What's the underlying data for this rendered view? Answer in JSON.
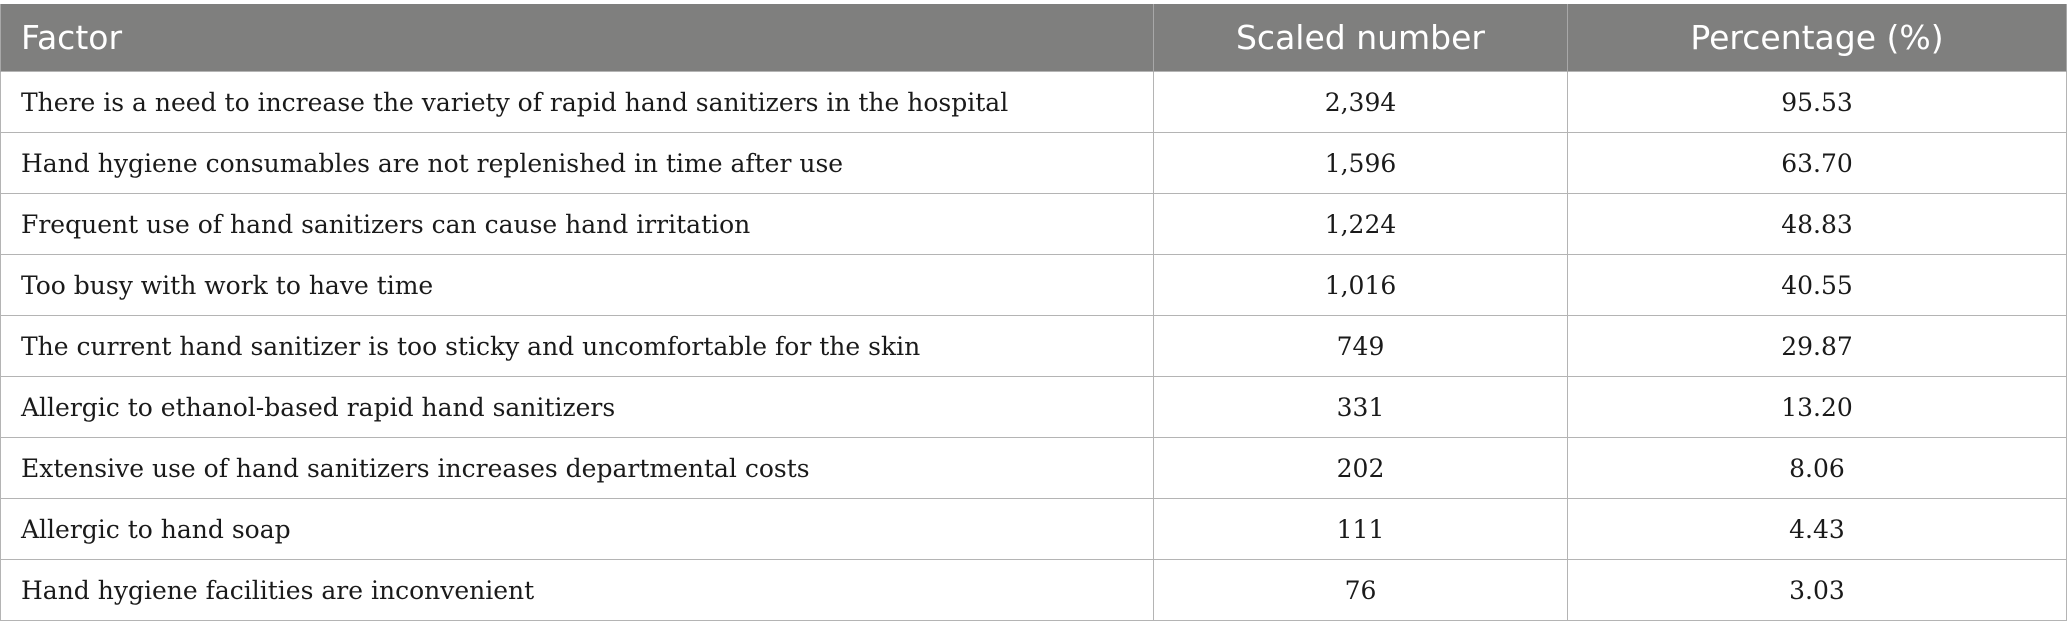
{
  "table": {
    "headers": {
      "factor": "Factor",
      "scaled": "Scaled number",
      "percentage": "Percentage (%)"
    },
    "rows": [
      {
        "factor": "There is a need to increase the variety of rapid hand sanitizers in the hospital",
        "scaled": "2,394",
        "percentage": "95.53"
      },
      {
        "factor": "Hand hygiene consumables are not replenished in time after use",
        "scaled": "1,596",
        "percentage": "63.70"
      },
      {
        "factor": "Frequent use of hand sanitizers can cause hand irritation",
        "scaled": "1,224",
        "percentage": "48.83"
      },
      {
        "factor": "Too busy with work to have time",
        "scaled": "1,016",
        "percentage": "40.55"
      },
      {
        "factor": "The current hand sanitizer is too sticky and uncomfortable for the skin",
        "scaled": "749",
        "percentage": "29.87"
      },
      {
        "factor": "Allergic to ethanol-based rapid hand sanitizers",
        "scaled": "331",
        "percentage": "13.20"
      },
      {
        "factor": "Extensive use of hand sanitizers increases departmental costs",
        "scaled": "202",
        "percentage": "8.06"
      },
      {
        "factor": "Allergic to hand soap",
        "scaled": "111",
        "percentage": "4.43"
      },
      {
        "factor": "Hand hygiene facilities are inconvenient",
        "scaled": "76",
        "percentage": "3.03"
      }
    ]
  }
}
